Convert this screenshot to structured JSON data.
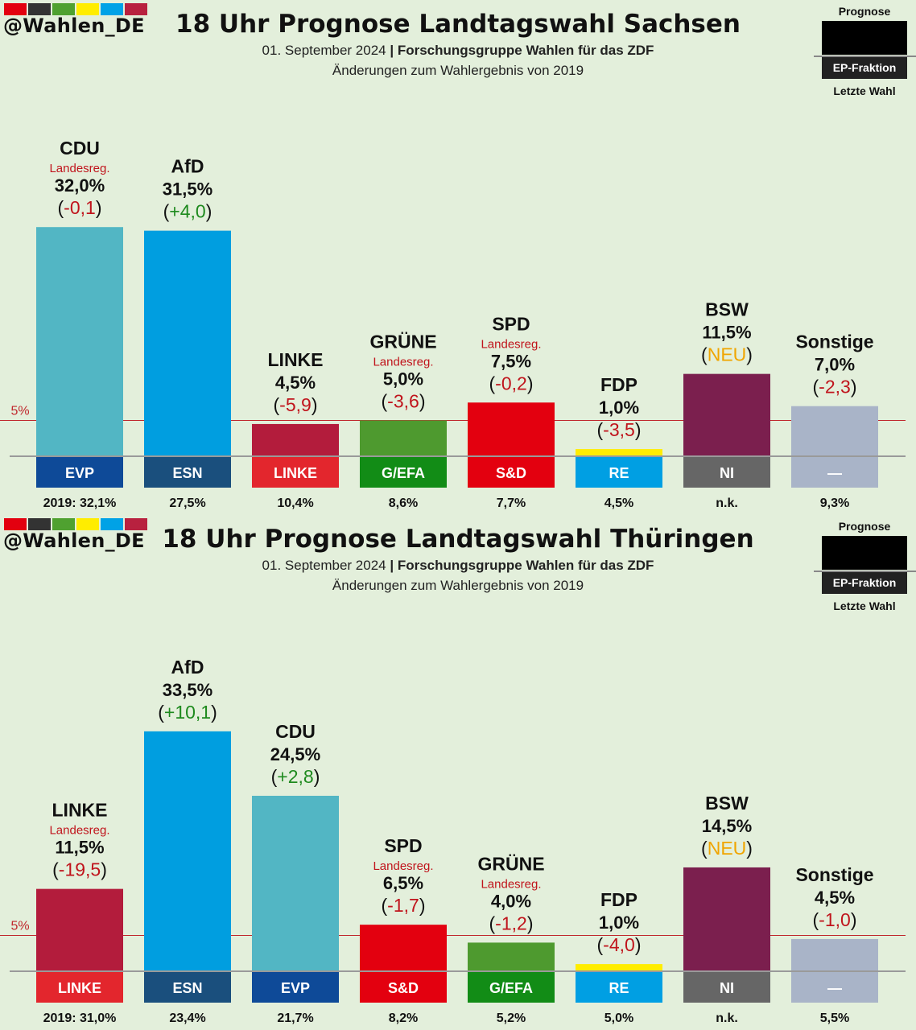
{
  "swatch_colors": [
    "#e3000f",
    "#333333",
    "#4fa130",
    "#ffed00",
    "#00a2e6",
    "#b8213f"
  ],
  "legend": {
    "top": "Prognose",
    "ep": "EP-Fraktion",
    "bottom": "Letzte Wahl"
  },
  "five_percent_label": "5%",
  "panels": [
    {
      "handle": "@Wahlen_DE",
      "title": "18 Uhr Prognose Landtagswahl Sachsen",
      "subtitle_date": "01. September 2024",
      "subtitle_sep": "|",
      "subtitle_source": "Forschungsgruppe Wahlen für das ZDF",
      "subtitle2": "Änderungen zum Wahlergebnis von 2019",
      "chart_data": {
        "type": "bar",
        "threshold": 5,
        "bars": [
          {
            "party": "CDU",
            "value": 32.0,
            "label": "32,0%",
            "change": "-0,1",
            "change_dir": "neg",
            "govt": "Landesreg.",
            "ep": "EVP",
            "ep_color": "#0e4a98",
            "color": "#52b6c4",
            "prev": "2019: 32,1%"
          },
          {
            "party": "AfD",
            "value": 31.5,
            "label": "31,5%",
            "change": "+4,0",
            "change_dir": "pos",
            "govt": "",
            "ep": "ESN",
            "ep_color": "#1a4f7d",
            "color": "#009ee0",
            "prev": "27,5%"
          },
          {
            "party": "LINKE",
            "value": 4.5,
            "label": "4,5%",
            "change": "-5,9",
            "change_dir": "neg",
            "govt": "",
            "ep": "LINKE",
            "ep_color": "#e3262d",
            "color": "#b31c3c",
            "prev": "10,4%"
          },
          {
            "party": "GRÜNE",
            "value": 5.0,
            "label": "5,0%",
            "change": "-3,6",
            "change_dir": "neg",
            "govt": "Landesreg.",
            "ep": "G/EFA",
            "ep_color": "#128c16",
            "color": "#4e9a2f",
            "prev": "8,6%"
          },
          {
            "party": "SPD",
            "value": 7.5,
            "label": "7,5%",
            "change": "-0,2",
            "change_dir": "neg",
            "govt": "Landesreg.",
            "ep": "S&D",
            "ep_color": "#e3000f",
            "color": "#e3000f",
            "prev": "7,7%"
          },
          {
            "party": "FDP",
            "value": 1.0,
            "label": "1,0%",
            "change": "-3,5",
            "change_dir": "neg",
            "govt": "",
            "ep": "RE",
            "ep_color": "#009fe3",
            "color": "#ffed00",
            "prev": "4,5%"
          },
          {
            "party": "BSW",
            "value": 11.5,
            "label": "11,5%",
            "change": "NEU",
            "change_dir": "new",
            "govt": "",
            "ep": "NI",
            "ep_color": "#666666",
            "color": "#7b1f4e",
            "prev": "n.k."
          },
          {
            "party": "Sonstige",
            "value": 7.0,
            "label": "7,0%",
            "change": "-2,3",
            "change_dir": "neg",
            "govt": "",
            "ep": "—",
            "ep_color": "#a9b4c8",
            "color": "#a9b4c8",
            "prev": "9,3%"
          }
        ]
      }
    },
    {
      "handle": "@Wahlen_DE",
      "title": "18 Uhr Prognose Landtagswahl Thüringen",
      "subtitle_date": "01. September 2024",
      "subtitle_sep": "|",
      "subtitle_source": "Forschungsgruppe Wahlen für das ZDF",
      "subtitle2": "Änderungen zum Wahlergebnis von 2019",
      "chart_data": {
        "type": "bar",
        "threshold": 5,
        "bars": [
          {
            "party": "LINKE",
            "value": 11.5,
            "label": "11,5%",
            "change": "-19,5",
            "change_dir": "neg",
            "govt": "Landesreg.",
            "ep": "LINKE",
            "ep_color": "#e3262d",
            "color": "#b31c3c",
            "prev": "2019: 31,0%"
          },
          {
            "party": "AfD",
            "value": 33.5,
            "label": "33,5%",
            "change": "+10,1",
            "change_dir": "pos",
            "govt": "",
            "ep": "ESN",
            "ep_color": "#1a4f7d",
            "color": "#009ee0",
            "prev": "23,4%"
          },
          {
            "party": "CDU",
            "value": 24.5,
            "label": "24,5%",
            "change": "+2,8",
            "change_dir": "pos",
            "govt": "",
            "ep": "EVP",
            "ep_color": "#0e4a98",
            "color": "#52b6c4",
            "prev": "21,7%"
          },
          {
            "party": "SPD",
            "value": 6.5,
            "label": "6,5%",
            "change": "-1,7",
            "change_dir": "neg",
            "govt": "Landesreg.",
            "ep": "S&D",
            "ep_color": "#e3000f",
            "color": "#e3000f",
            "prev": "8,2%"
          },
          {
            "party": "GRÜNE",
            "value": 4.0,
            "label": "4,0%",
            "change": "-1,2",
            "change_dir": "neg",
            "govt": "Landesreg.",
            "ep": "G/EFA",
            "ep_color": "#128c16",
            "color": "#4e9a2f",
            "prev": "5,2%"
          },
          {
            "party": "FDP",
            "value": 1.0,
            "label": "1,0%",
            "change": "-4,0",
            "change_dir": "neg",
            "govt": "",
            "ep": "RE",
            "ep_color": "#009fe3",
            "color": "#ffed00",
            "prev": "5,0%"
          },
          {
            "party": "BSW",
            "value": 14.5,
            "label": "14,5%",
            "change": "NEU",
            "change_dir": "new",
            "govt": "",
            "ep": "NI",
            "ep_color": "#666666",
            "color": "#7b1f4e",
            "prev": "n.k."
          },
          {
            "party": "Sonstige",
            "value": 4.5,
            "label": "4,5%",
            "change": "-1,0",
            "change_dir": "neg",
            "govt": "",
            "ep": "—",
            "ep_color": "#a9b4c8",
            "color": "#a9b4c8",
            "prev": "5,5%"
          }
        ]
      }
    }
  ]
}
